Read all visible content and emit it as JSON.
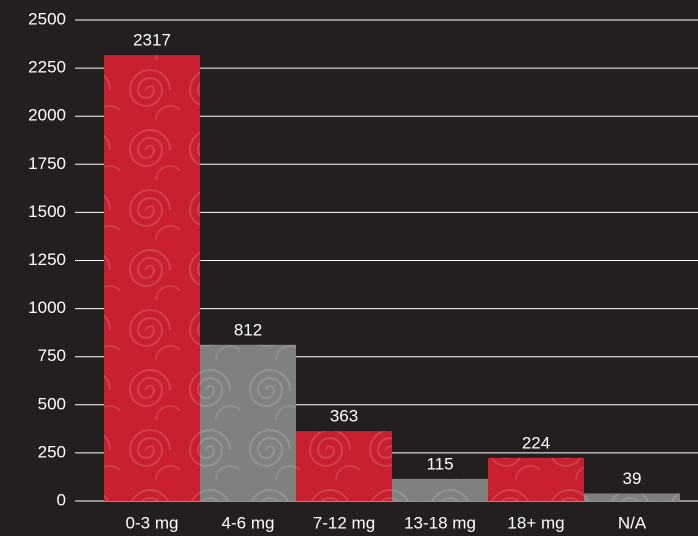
{
  "chart_data": {
    "type": "bar",
    "categories": [
      "0-3 mg",
      "4-6 mg",
      "7-12 mg",
      "13-18 mg",
      "18+ mg",
      "N/A"
    ],
    "values": [
      2317,
      812,
      363,
      115,
      224,
      39
    ],
    "colors": [
      "#c8202f",
      "#808080",
      "#c8202f",
      "#808080",
      "#c8202f",
      "#808080"
    ],
    "ylim": [
      0,
      2500
    ],
    "yticks": [
      0,
      250,
      500,
      750,
      1000,
      1250,
      1500,
      1750,
      2000,
      2250,
      2500
    ],
    "grid": true
  }
}
